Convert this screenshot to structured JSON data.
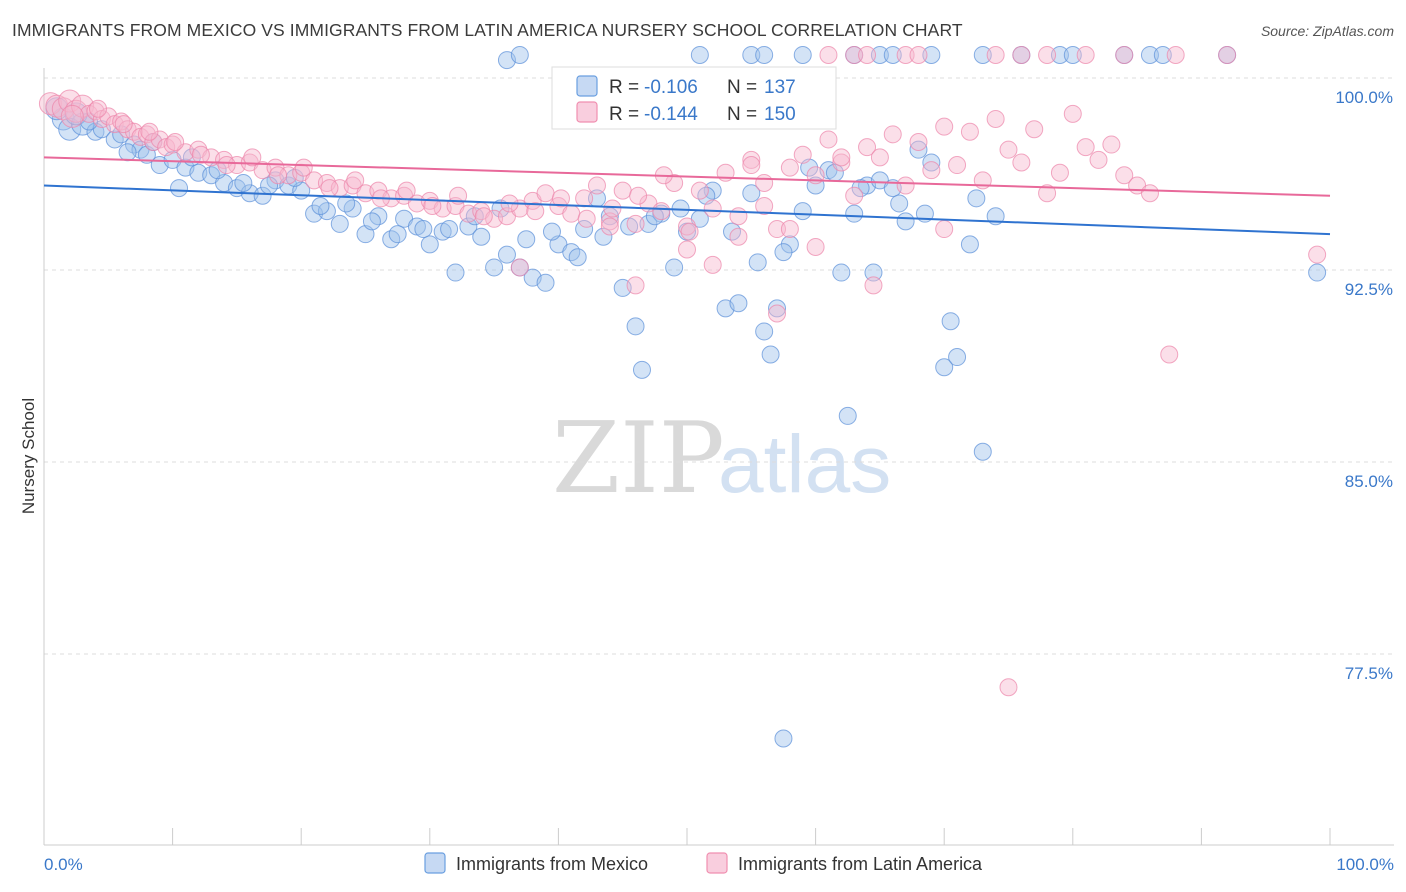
{
  "title": "IMMIGRANTS FROM MEXICO VS IMMIGRANTS FROM LATIN AMERICA NURSERY SCHOOL CORRELATION CHART",
  "source": "Source: ZipAtlas.com",
  "watermark": {
    "zip": "ZIP",
    "atlas": "atlas"
  },
  "colors": {
    "blue": "#6a9fe0",
    "blue_line": "#2f73d0",
    "pink": "#f08fb0",
    "pink_line": "#e8699a"
  },
  "chart_data": {
    "type": "scatter",
    "title": "IMMIGRANTS FROM MEXICO VS IMMIGRANTS FROM LATIN AMERICA NURSERY SCHOOL CORRELATION CHART",
    "xlabel": "",
    "ylabel": "Nursery School",
    "xlim": [
      0,
      100
    ],
    "ylim": [
      70.5,
      101
    ],
    "x_tick_labels": [
      "0.0%",
      "100.0%"
    ],
    "y_ticks": [
      {
        "value": 100.0,
        "label": "100.0%"
      },
      {
        "value": 92.5,
        "label": "92.5%"
      },
      {
        "value": 85.0,
        "label": "85.0%"
      },
      {
        "value": 77.5,
        "label": "77.5%"
      }
    ],
    "legend": {
      "r_label": "R =",
      "n_label": "N =",
      "entries": [
        {
          "r": "-0.106",
          "n": "137"
        },
        {
          "r": "-0.144",
          "n": "150"
        }
      ]
    },
    "series": [
      {
        "name": "Immigrants from Mexico",
        "color": "#6a9fe0",
        "trend": {
          "x": [
            0,
            100
          ],
          "y": [
            95.8,
            93.9
          ]
        },
        "points": [
          [
            1.5,
            98.4
          ],
          [
            1.0,
            98.8
          ],
          [
            2.0,
            98.0
          ],
          [
            3.0,
            98.2
          ],
          [
            4.0,
            97.9
          ],
          [
            4.5,
            98.0
          ],
          [
            5.5,
            97.6
          ],
          [
            6.0,
            97.8
          ],
          [
            7.0,
            97.4
          ],
          [
            7.5,
            97.2
          ],
          [
            8.0,
            97.0
          ],
          [
            9.0,
            96.6
          ],
          [
            10.0,
            96.8
          ],
          [
            10.5,
            95.7
          ],
          [
            11.0,
            96.5
          ],
          [
            12.0,
            96.3
          ],
          [
            13.0,
            96.2
          ],
          [
            14.0,
            95.9
          ],
          [
            15.0,
            95.7
          ],
          [
            16.0,
            95.5
          ],
          [
            17.0,
            95.4
          ],
          [
            18.0,
            96.0
          ],
          [
            19.0,
            95.8
          ],
          [
            20.0,
            95.6
          ],
          [
            21.0,
            94.7
          ],
          [
            22.0,
            94.8
          ],
          [
            23.0,
            94.3
          ],
          [
            24.0,
            94.9
          ],
          [
            25.0,
            93.9
          ],
          [
            26.0,
            94.6
          ],
          [
            27.0,
            93.7
          ],
          [
            28.0,
            94.5
          ],
          [
            29.0,
            94.2
          ],
          [
            30.0,
            93.5
          ],
          [
            31.0,
            94.0
          ],
          [
            32.0,
            92.4
          ],
          [
            33.0,
            94.2
          ],
          [
            34.0,
            93.8
          ],
          [
            35.0,
            92.6
          ],
          [
            36.0,
            93.1
          ],
          [
            37.0,
            92.6
          ],
          [
            38.0,
            92.2
          ],
          [
            39.0,
            92.0
          ],
          [
            40.0,
            93.5
          ],
          [
            41.0,
            93.2
          ],
          [
            42.0,
            94.1
          ],
          [
            43.0,
            95.3
          ],
          [
            44.0,
            94.6
          ],
          [
            45.0,
            91.8
          ],
          [
            46.0,
            90.3
          ],
          [
            46.5,
            88.6
          ],
          [
            47.0,
            94.3
          ],
          [
            48.0,
            94.7
          ],
          [
            49.0,
            92.6
          ],
          [
            50.0,
            94.0
          ],
          [
            51.0,
            94.5
          ],
          [
            52.0,
            95.6
          ],
          [
            53.0,
            91.0
          ],
          [
            54.0,
            91.2
          ],
          [
            55.0,
            95.5
          ],
          [
            56.0,
            90.1
          ],
          [
            56.5,
            89.2
          ],
          [
            57.0,
            91.0
          ],
          [
            58.0,
            93.5
          ],
          [
            59.0,
            94.8
          ],
          [
            60.0,
            95.8
          ],
          [
            61.0,
            96.4
          ],
          [
            62.0,
            92.4
          ],
          [
            63.0,
            94.7
          ],
          [
            64.0,
            95.8
          ],
          [
            65.0,
            96.0
          ],
          [
            66.0,
            95.7
          ],
          [
            67.0,
            94.4
          ],
          [
            68.0,
            97.2
          ],
          [
            69.0,
            96.7
          ],
          [
            70.0,
            88.7
          ],
          [
            71.0,
            89.1
          ],
          [
            72.0,
            93.5
          ],
          [
            73.0,
            85.4
          ],
          [
            74.0,
            94.6
          ],
          [
            57.5,
            74.2
          ],
          [
            62.5,
            86.8
          ],
          [
            36.0,
            100.7
          ],
          [
            37.0,
            100.9
          ],
          [
            51.0,
            100.9
          ],
          [
            55.0,
            100.9
          ],
          [
            56.0,
            100.9
          ],
          [
            59.0,
            100.9
          ],
          [
            63.0,
            100.9
          ],
          [
            65.0,
            100.9
          ],
          [
            66.0,
            100.9
          ],
          [
            69.0,
            100.9
          ],
          [
            73.0,
            100.9
          ],
          [
            76.0,
            100.9
          ],
          [
            79.0,
            100.9
          ],
          [
            80.0,
            100.9
          ],
          [
            84.0,
            100.9
          ],
          [
            86.0,
            100.9
          ],
          [
            87.0,
            100.9
          ],
          [
            92.0,
            100.9
          ],
          [
            99.0,
            92.4
          ],
          [
            2.5,
            98.6
          ],
          [
            3.5,
            98.3
          ],
          [
            6.5,
            97.1
          ],
          [
            8.5,
            97.5
          ],
          [
            11.5,
            96.9
          ],
          [
            13.5,
            96.4
          ],
          [
            15.5,
            95.9
          ],
          [
            17.5,
            95.8
          ],
          [
            19.5,
            96.1
          ],
          [
            21.5,
            95.0
          ],
          [
            23.5,
            95.1
          ],
          [
            25.5,
            94.4
          ],
          [
            27.5,
            93.9
          ],
          [
            29.5,
            94.1
          ],
          [
            31.5,
            94.1
          ],
          [
            33.5,
            94.6
          ],
          [
            35.5,
            94.9
          ],
          [
            37.5,
            93.7
          ],
          [
            39.5,
            94.0
          ],
          [
            41.5,
            93.0
          ],
          [
            43.5,
            93.8
          ],
          [
            45.5,
            94.2
          ],
          [
            47.5,
            94.6
          ],
          [
            49.5,
            94.9
          ],
          [
            51.5,
            95.4
          ],
          [
            53.5,
            94.0
          ],
          [
            55.5,
            92.8
          ],
          [
            57.5,
            93.2
          ],
          [
            59.5,
            96.5
          ],
          [
            61.5,
            96.3
          ],
          [
            63.5,
            95.7
          ],
          [
            64.5,
            92.4
          ],
          [
            66.5,
            95.1
          ],
          [
            68.5,
            94.7
          ],
          [
            70.5,
            90.5
          ],
          [
            72.5,
            95.3
          ]
        ]
      },
      {
        "name": "Immigrants from Latin America",
        "color": "#f08fb0",
        "trend": {
          "x": [
            0,
            100
          ],
          "y": [
            96.9,
            95.4
          ]
        },
        "points": [
          [
            0.5,
            99.0
          ],
          [
            1.0,
            98.9
          ],
          [
            1.5,
            98.8
          ],
          [
            2.0,
            99.1
          ],
          [
            2.5,
            98.7
          ],
          [
            3.0,
            98.9
          ],
          [
            3.5,
            98.6
          ],
          [
            4.0,
            98.7
          ],
          [
            4.5,
            98.4
          ],
          [
            5.0,
            98.5
          ],
          [
            5.5,
            98.2
          ],
          [
            6.0,
            98.3
          ],
          [
            6.5,
            98.0
          ],
          [
            7.0,
            97.9
          ],
          [
            7.5,
            97.7
          ],
          [
            8.0,
            97.8
          ],
          [
            8.5,
            97.5
          ],
          [
            9.0,
            97.6
          ],
          [
            9.5,
            97.3
          ],
          [
            10.0,
            97.4
          ],
          [
            11.0,
            97.1
          ],
          [
            12.0,
            97.2
          ],
          [
            13.0,
            96.9
          ],
          [
            14.0,
            96.8
          ],
          [
            15.0,
            96.6
          ],
          [
            16.0,
            96.7
          ],
          [
            17.0,
            96.4
          ],
          [
            18.0,
            96.5
          ],
          [
            19.0,
            96.2
          ],
          [
            20.0,
            96.3
          ],
          [
            21.0,
            96.0
          ],
          [
            22.0,
            95.9
          ],
          [
            23.0,
            95.7
          ],
          [
            24.0,
            95.8
          ],
          [
            25.0,
            95.5
          ],
          [
            26.0,
            95.6
          ],
          [
            27.0,
            95.3
          ],
          [
            28.0,
            95.4
          ],
          [
            29.0,
            95.1
          ],
          [
            30.0,
            95.2
          ],
          [
            31.0,
            94.9
          ],
          [
            32.0,
            95.0
          ],
          [
            33.0,
            94.7
          ],
          [
            34.0,
            94.8
          ],
          [
            35.0,
            94.5
          ],
          [
            36.0,
            94.6
          ],
          [
            37.0,
            94.9
          ],
          [
            38.0,
            95.2
          ],
          [
            39.0,
            95.5
          ],
          [
            40.0,
            95.0
          ],
          [
            41.0,
            94.7
          ],
          [
            42.0,
            95.3
          ],
          [
            43.0,
            95.8
          ],
          [
            44.0,
            94.4
          ],
          [
            45.0,
            95.6
          ],
          [
            46.0,
            94.3
          ],
          [
            47.0,
            95.1
          ],
          [
            48.0,
            94.8
          ],
          [
            49.0,
            95.9
          ],
          [
            50.0,
            94.2
          ],
          [
            51.0,
            95.6
          ],
          [
            52.0,
            94.9
          ],
          [
            53.0,
            96.3
          ],
          [
            54.0,
            94.6
          ],
          [
            55.0,
            96.8
          ],
          [
            56.0,
            95.9
          ],
          [
            57.0,
            94.1
          ],
          [
            58.0,
            96.5
          ],
          [
            59.0,
            97.0
          ],
          [
            60.0,
            96.2
          ],
          [
            61.0,
            97.6
          ],
          [
            62.0,
            96.7
          ],
          [
            63.0,
            95.4
          ],
          [
            64.0,
            97.3
          ],
          [
            65.0,
            96.9
          ],
          [
            66.0,
            97.8
          ],
          [
            67.0,
            95.8
          ],
          [
            68.0,
            97.5
          ],
          [
            69.0,
            96.4
          ],
          [
            70.0,
            98.1
          ],
          [
            71.0,
            96.6
          ],
          [
            72.0,
            97.9
          ],
          [
            73.0,
            96.0
          ],
          [
            74.0,
            98.4
          ],
          [
            75.0,
            97.2
          ],
          [
            76.0,
            96.7
          ],
          [
            77.0,
            98.0
          ],
          [
            78.0,
            95.5
          ],
          [
            79.0,
            96.3
          ],
          [
            80.0,
            98.6
          ],
          [
            81.0,
            97.3
          ],
          [
            82.0,
            96.8
          ],
          [
            83.0,
            97.4
          ],
          [
            84.0,
            96.2
          ],
          [
            85.0,
            95.8
          ],
          [
            86.0,
            95.5
          ],
          [
            87.5,
            89.2
          ],
          [
            99.0,
            93.1
          ],
          [
            64.5,
            91.9
          ],
          [
            57.0,
            90.8
          ],
          [
            37.0,
            92.6
          ],
          [
            44.0,
            94.2
          ],
          [
            46.0,
            91.9
          ],
          [
            50.0,
            93.3
          ],
          [
            52.0,
            92.7
          ],
          [
            54.0,
            93.8
          ],
          [
            56.0,
            95.0
          ],
          [
            58.0,
            94.1
          ],
          [
            60.0,
            93.4
          ],
          [
            62.0,
            96.9
          ],
          [
            70.0,
            94.1
          ],
          [
            75.0,
            76.2
          ],
          [
            61.0,
            100.9
          ],
          [
            63.0,
            100.9
          ],
          [
            64.0,
            100.9
          ],
          [
            67.0,
            100.9
          ],
          [
            68.0,
            100.9
          ],
          [
            74.0,
            100.9
          ],
          [
            76.0,
            100.9
          ],
          [
            78.0,
            100.9
          ],
          [
            81.0,
            100.9
          ],
          [
            84.0,
            100.9
          ],
          [
            88.0,
            100.9
          ],
          [
            92.0,
            100.9
          ],
          [
            2.2,
            98.5
          ],
          [
            4.2,
            98.8
          ],
          [
            6.2,
            98.2
          ],
          [
            8.2,
            97.9
          ],
          [
            10.2,
            97.5
          ],
          [
            12.2,
            97.0
          ],
          [
            14.2,
            96.6
          ],
          [
            16.2,
            96.9
          ],
          [
            18.2,
            96.2
          ],
          [
            20.2,
            96.5
          ],
          [
            22.2,
            95.7
          ],
          [
            24.2,
            96.0
          ],
          [
            26.2,
            95.3
          ],
          [
            28.2,
            95.6
          ],
          [
            30.2,
            95.0
          ],
          [
            32.2,
            95.4
          ],
          [
            34.2,
            94.6
          ],
          [
            36.2,
            95.1
          ],
          [
            38.2,
            94.8
          ],
          [
            40.2,
            95.3
          ],
          [
            42.2,
            94.5
          ],
          [
            44.2,
            94.9
          ],
          [
            46.2,
            95.4
          ],
          [
            48.2,
            96.2
          ],
          [
            50.2,
            94.0
          ],
          [
            55.0,
            96.6
          ]
        ]
      }
    ]
  },
  "bottom_legend": [
    "Immigrants from Mexico",
    "Immigrants from Latin America"
  ]
}
